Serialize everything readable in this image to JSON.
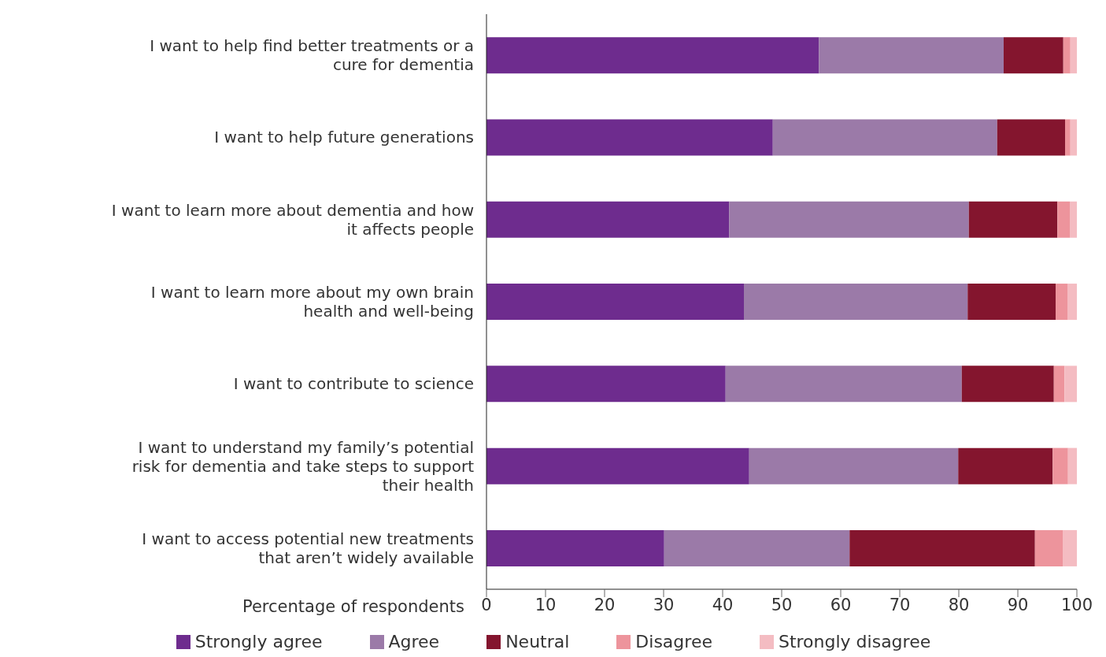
{
  "chart_data": {
    "type": "bar",
    "orientation": "horizontal",
    "stacked": true,
    "xlabel": "Percentage of respondents",
    "categories": [
      "I want to help find better treatments or a cure for dementia",
      "I want to help future generations",
      "I want to learn more about dementia and how it affects people",
      "I want to learn more about my own brain health and well-being",
      "I want to contribute to science",
      "I want to understand my family’s potential risk for dementia and take steps to support their health",
      "I want to access potential new treatments that aren’t widely available"
    ],
    "series": [
      {
        "name": "Strongly agree",
        "color": "#6e2c8e",
        "values": [
          56.3,
          48.5,
          41.1,
          43.6,
          40.5,
          44.5,
          30.1
        ]
      },
      {
        "name": "Agree",
        "color": "#9b7aa8",
        "values": [
          31.3,
          38.0,
          40.6,
          37.9,
          40.0,
          35.4,
          31.4
        ]
      },
      {
        "name": "Neutral",
        "color": "#84152e",
        "values": [
          10.1,
          11.5,
          15.0,
          14.9,
          15.6,
          16.0,
          31.4
        ]
      },
      {
        "name": "Disagree",
        "color": "#ed949c",
        "values": [
          1.2,
          0.9,
          2.1,
          2.0,
          1.8,
          2.6,
          4.7
        ]
      },
      {
        "name": "Strongly disagree",
        "color": "#f4bcc2",
        "values": [
          1.1,
          1.1,
          1.2,
          1.6,
          2.1,
          1.5,
          2.4
        ]
      }
    ],
    "xlim": [
      0,
      100
    ],
    "xticks": [
      0,
      10,
      20,
      30,
      40,
      50,
      60,
      70,
      80,
      90,
      100
    ],
    "grid": false,
    "legend": "bottom"
  }
}
